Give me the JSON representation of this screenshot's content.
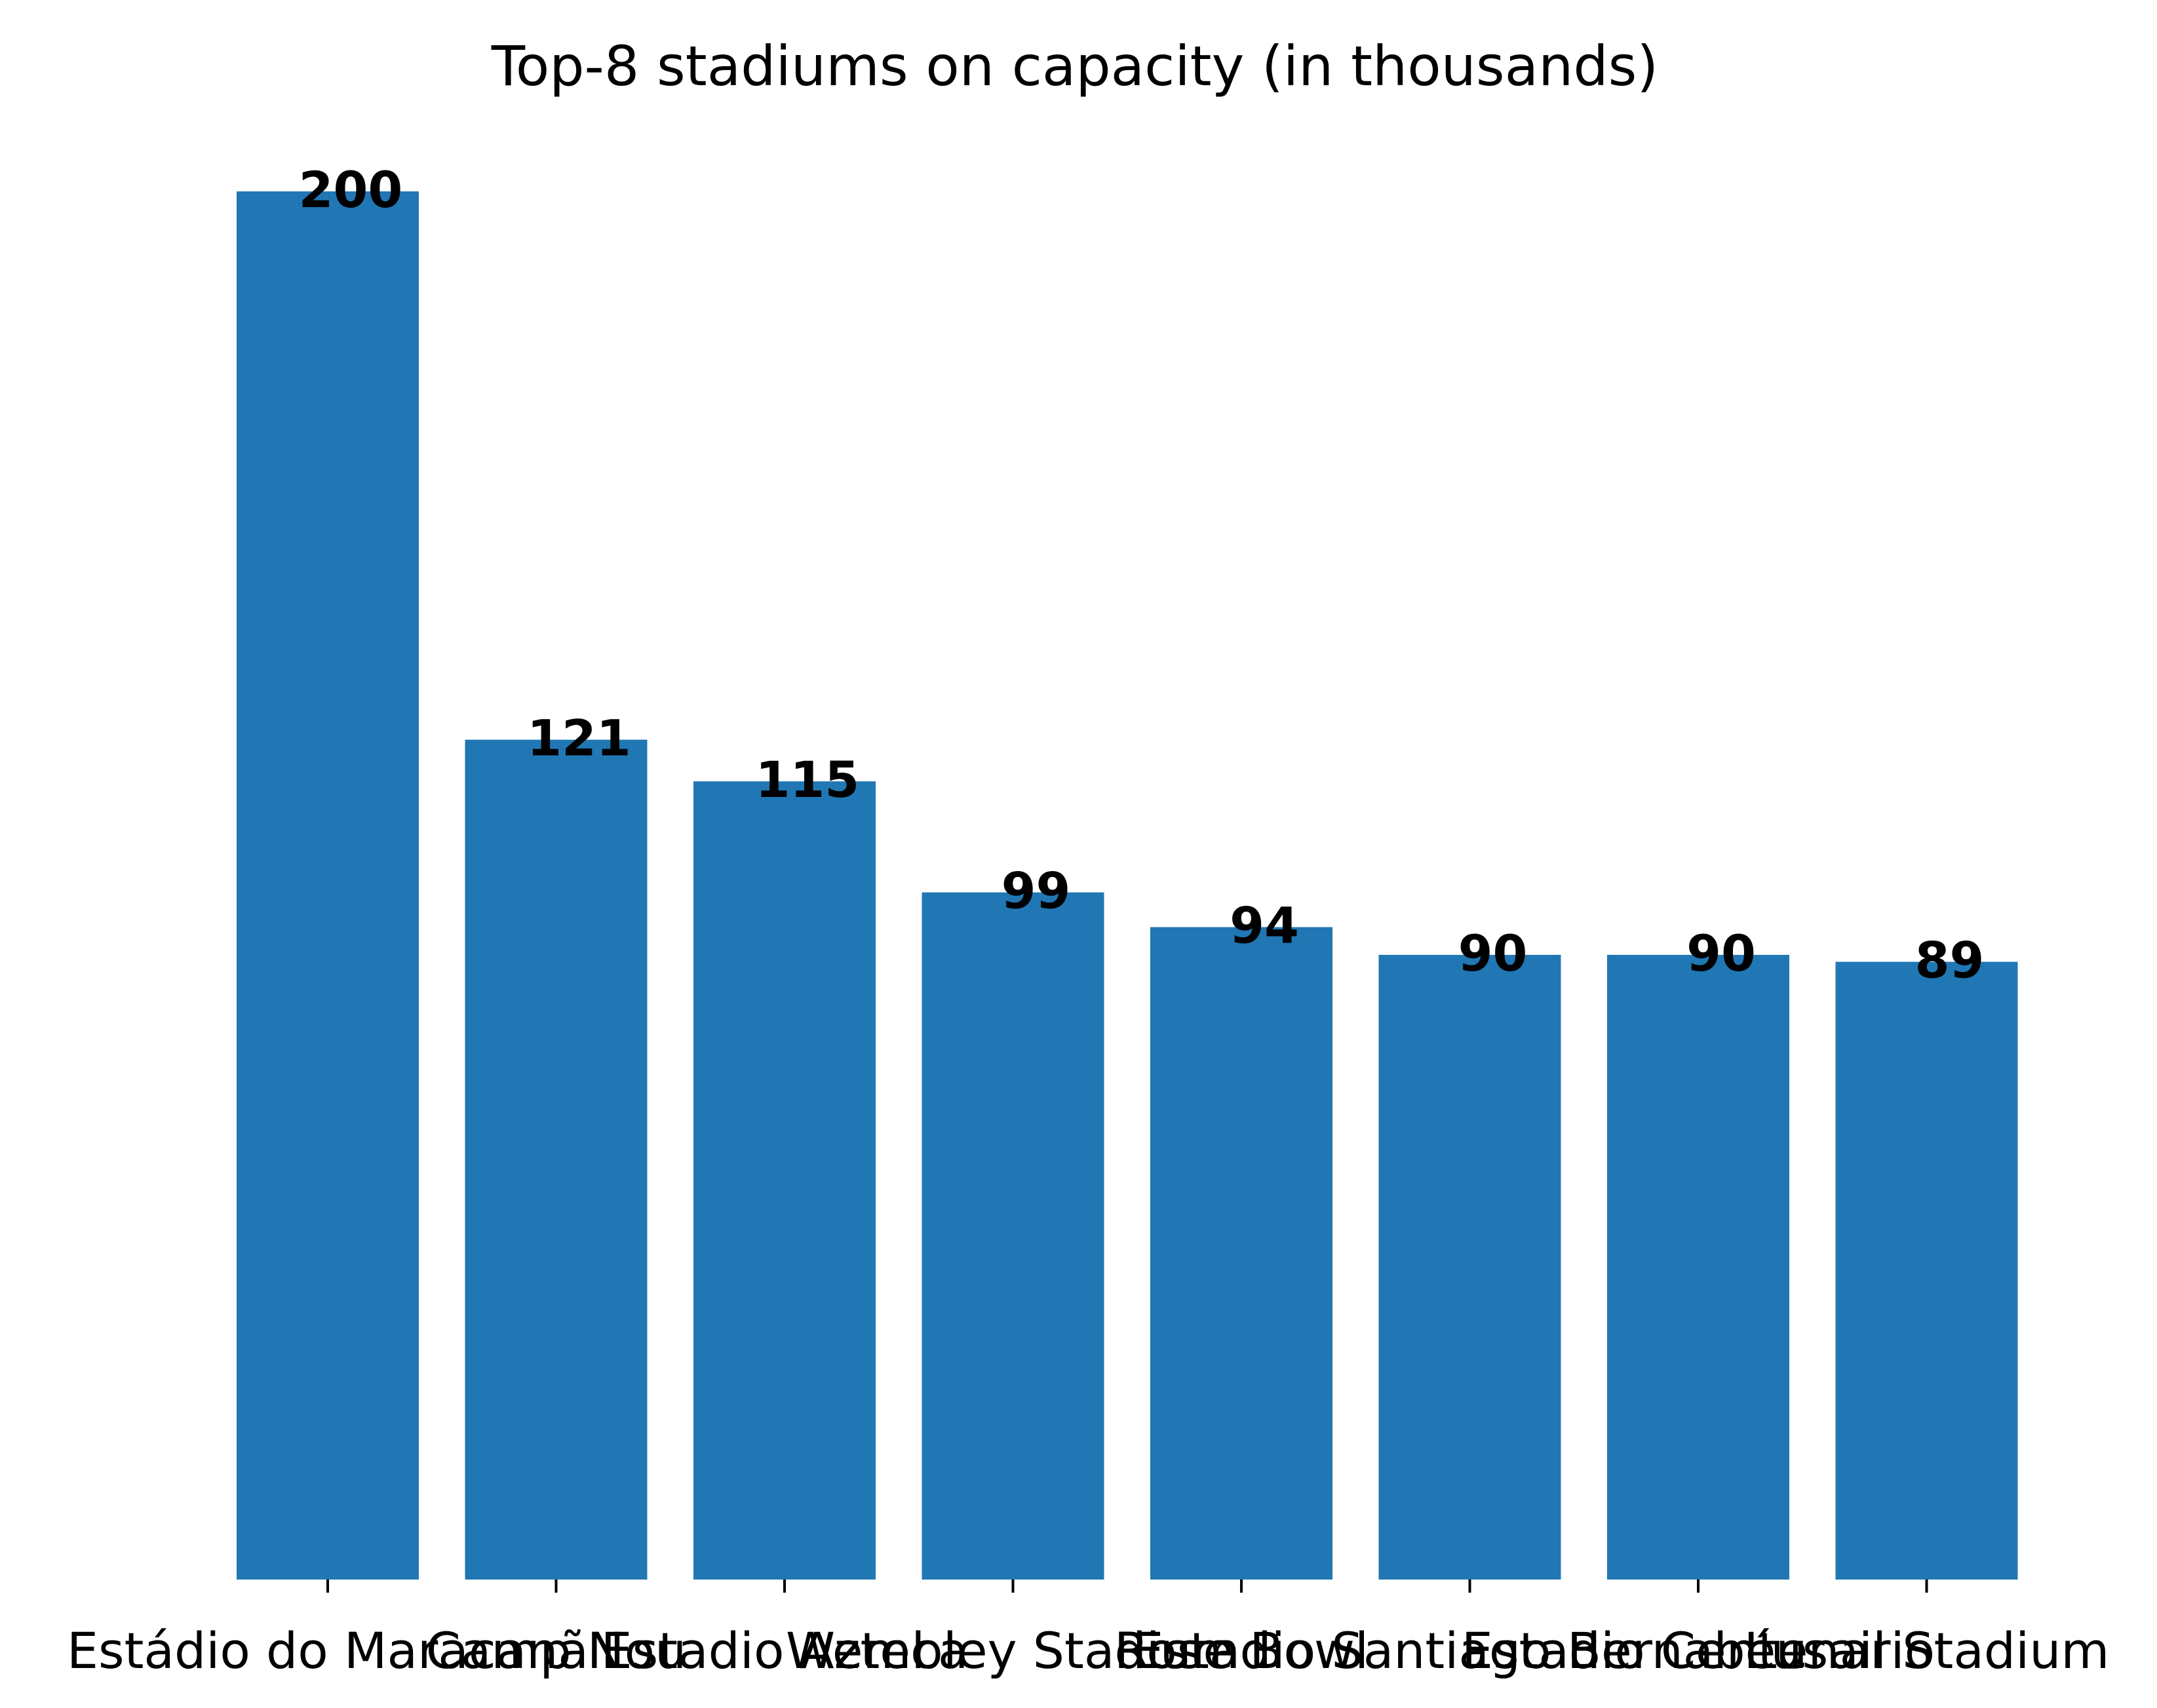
{
  "chart_data": {
    "type": "bar",
    "title": "Top-8 stadiums on capacity (in thousands)",
    "xlabel": "",
    "ylabel": "",
    "categories": [
      "Estádio do Maracanã",
      "Camp Nou",
      "Estadio Azteca",
      "Wembley Stadium",
      "Rose Bowl",
      "Estadio Santiago Bernabéu",
      "Estadio Centenario",
      "Lusail Stadium"
    ],
    "values": [
      200,
      121,
      115,
      99,
      94,
      90,
      90,
      89
    ],
    "ylim": [
      0,
      210
    ],
    "grid": false,
    "bar_color": "#2077b4",
    "show_value_labels": true
  }
}
